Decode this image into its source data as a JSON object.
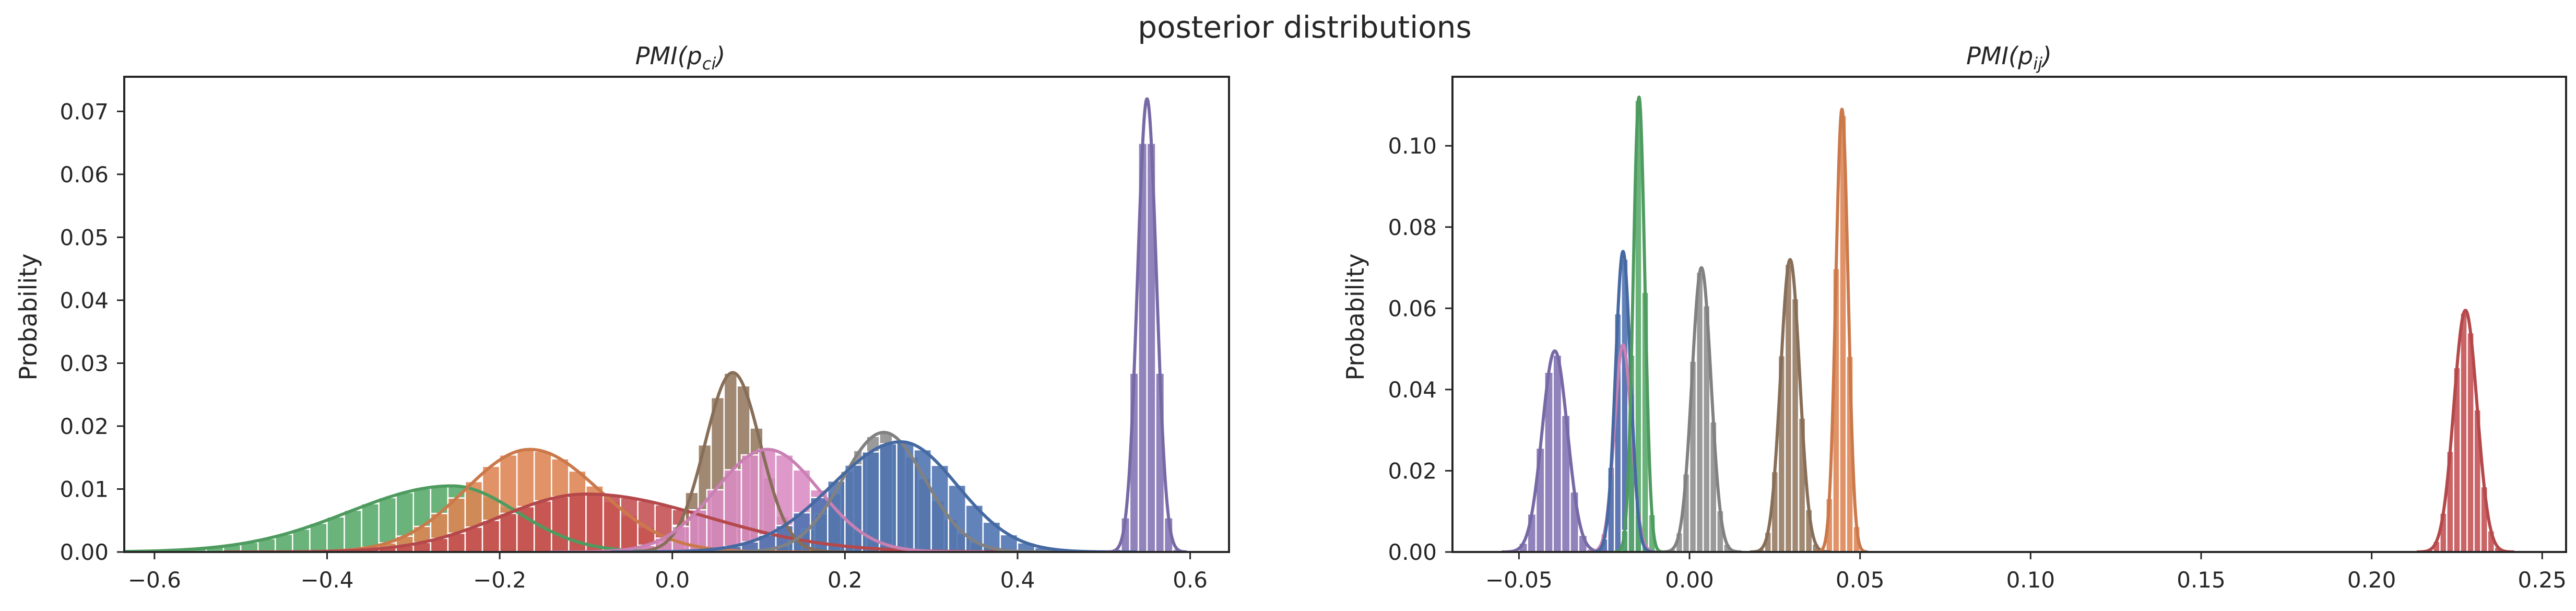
{
  "figure": {
    "suptitle": "posterior distributions"
  },
  "chart_data": [
    {
      "type": "histogram",
      "title_main": "PMI(p",
      "title_sub": "ci",
      "title_end": ")",
      "xlabel": "",
      "ylabel": "Probability",
      "xlim": [
        -0.635,
        0.645
      ],
      "ylim": [
        0,
        0.0755
      ],
      "xticks": [
        -0.6,
        -0.4,
        -0.2,
        0.0,
        0.2,
        0.4,
        0.6
      ],
      "xtick_labels": [
        "−0.6",
        "−0.4",
        "−0.2",
        "0.0",
        "0.2",
        "0.4",
        "0.6"
      ],
      "yticks": [
        0.0,
        0.01,
        0.02,
        0.03,
        0.04,
        0.05,
        0.06,
        0.07
      ],
      "ytick_labels": [
        "0.00",
        "0.01",
        "0.02",
        "0.03",
        "0.04",
        "0.05",
        "0.06",
        "0.07"
      ],
      "grid": false,
      "series": [
        {
          "color": "#55a868",
          "mean": -0.255,
          "sd_left": 0.12,
          "sd_right": 0.075,
          "peak": 0.0105,
          "bin_width": 0.02,
          "range": [
            -0.58,
            0.05
          ]
        },
        {
          "color": "#dd8452",
          "mean": -0.165,
          "sd_left": 0.075,
          "sd_right": 0.08,
          "peak": 0.0163,
          "bin_width": 0.02,
          "range": [
            -0.42,
            0.14
          ]
        },
        {
          "color": "#c44e52",
          "mean": -0.1,
          "sd_left": 0.1,
          "sd_right": 0.14,
          "peak": 0.0092,
          "bin_width": 0.02,
          "range": [
            -0.4,
            0.3
          ]
        },
        {
          "color": "#937860",
          "mean": 0.07,
          "sd_left": 0.032,
          "sd_right": 0.032,
          "peak": 0.0285,
          "bin_width": 0.015,
          "range": [
            -0.04,
            0.18
          ]
        },
        {
          "color": "#da8bc3",
          "mean": 0.11,
          "sd_left": 0.06,
          "sd_right": 0.06,
          "peak": 0.0163,
          "bin_width": 0.02,
          "range": [
            -0.08,
            0.3
          ]
        },
        {
          "color": "#8c8c8c",
          "mean": 0.245,
          "sd_left": 0.048,
          "sd_right": 0.048,
          "peak": 0.019,
          "bin_width": 0.015,
          "range": [
            0.1,
            0.4
          ]
        },
        {
          "color": "#4c72b0",
          "mean": 0.265,
          "sd_left": 0.08,
          "sd_right": 0.065,
          "peak": 0.0175,
          "bin_width": 0.02,
          "range": [
            0.0,
            0.48
          ]
        },
        {
          "color": "#8172b3",
          "mean": 0.55,
          "sd_left": 0.011,
          "sd_right": 0.011,
          "peak": 0.072,
          "bin_width": 0.01,
          "range": [
            0.515,
            0.59
          ]
        }
      ]
    },
    {
      "type": "histogram",
      "title_main": "PMI(p",
      "title_sub": "ij",
      "title_end": ")",
      "xlabel": "",
      "ylabel": "Probability",
      "xlim": [
        -0.0695,
        0.257
      ],
      "ylim": [
        0,
        0.117
      ],
      "xticks": [
        -0.05,
        0.0,
        0.05,
        0.1,
        0.15,
        0.2,
        0.25
      ],
      "xtick_labels": [
        "−0.05",
        "0.00",
        "0.05",
        "0.10",
        "0.15",
        "0.20",
        "0.25"
      ],
      "yticks": [
        0.0,
        0.02,
        0.04,
        0.06,
        0.08,
        0.1
      ],
      "ytick_labels": [
        "0.00",
        "0.02",
        "0.04",
        "0.06",
        "0.08",
        "0.10"
      ],
      "grid": false,
      "series": [
        {
          "color": "#8172b3",
          "mean": -0.0395,
          "sd_left": 0.0037,
          "sd_right": 0.0037,
          "peak": 0.0495,
          "bin_width": 0.0025,
          "range": [
            -0.05,
            -0.028
          ]
        },
        {
          "color": "#da8bc3",
          "mean": -0.0195,
          "sd_left": 0.0025,
          "sd_right": 0.0025,
          "peak": 0.051,
          "bin_width": 0.002,
          "range": [
            -0.027,
            -0.012
          ]
        },
        {
          "color": "#4c72b0",
          "mean": -0.0195,
          "sd_left": 0.0022,
          "sd_right": 0.0022,
          "peak": 0.074,
          "bin_width": 0.002,
          "range": [
            -0.026,
            -0.013
          ]
        },
        {
          "color": "#55a868",
          "mean": -0.0148,
          "sd_left": 0.0017,
          "sd_right": 0.0017,
          "peak": 0.112,
          "bin_width": 0.002,
          "range": [
            -0.02,
            -0.009
          ]
        },
        {
          "color": "#8c8c8c",
          "mean": 0.0035,
          "sd_left": 0.0028,
          "sd_right": 0.0028,
          "peak": 0.07,
          "bin_width": 0.002,
          "range": [
            -0.005,
            0.012
          ]
        },
        {
          "color": "#937860",
          "mean": 0.0295,
          "sd_left": 0.0028,
          "sd_right": 0.0028,
          "peak": 0.072,
          "bin_width": 0.002,
          "range": [
            0.02,
            0.038
          ]
        },
        {
          "color": "#dd8452",
          "mean": 0.0447,
          "sd_left": 0.0018,
          "sd_right": 0.0018,
          "peak": 0.109,
          "bin_width": 0.002,
          "range": [
            0.039,
            0.051
          ]
        },
        {
          "color": "#c44e52",
          "mean": 0.2275,
          "sd_left": 0.0034,
          "sd_right": 0.0034,
          "peak": 0.0595,
          "bin_width": 0.002,
          "range": [
            0.217,
            0.238
          ]
        }
      ]
    }
  ]
}
